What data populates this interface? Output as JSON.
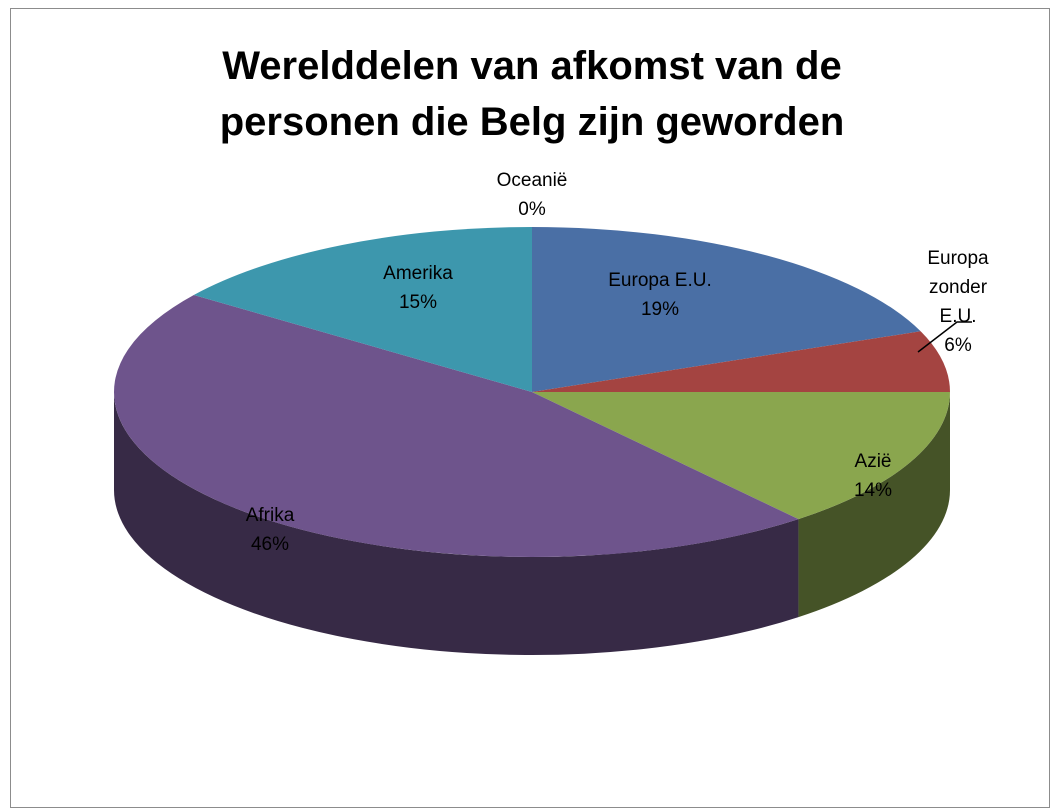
{
  "chart_data": {
    "type": "pie",
    "title": "Werelddelen van afkomst van de personen die Belg zijn geworden",
    "categories": [
      "Europa E.U.",
      "Europa zonder E.U.",
      "Azië",
      "Afrika",
      "Amerika",
      "Oceanië"
    ],
    "values": [
      19,
      6,
      14,
      46,
      15,
      0
    ],
    "value_labels": [
      "19%",
      "6%",
      "14%",
      "46%",
      "15%",
      "0%"
    ],
    "colors": [
      "#4a6fa5",
      "#a44441",
      "#8aa64e",
      "#6e548c",
      "#3d97ad",
      "#e08a2e"
    ]
  }
}
